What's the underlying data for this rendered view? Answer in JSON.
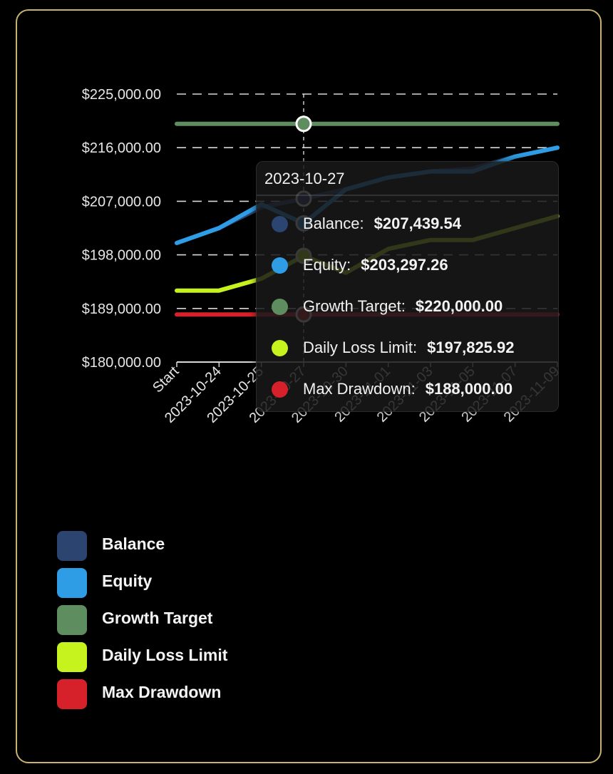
{
  "chart_data": {
    "type": "line",
    "x": [
      "Start",
      "2023-10-24",
      "2023-10-25",
      "2023-10-27",
      "2023-10-30",
      "2023-11-01",
      "2023-11-03",
      "2023-11-05",
      "2023-11-07",
      "2023-11-09"
    ],
    "ylim": [
      180000,
      225000
    ],
    "yticks": [
      "$225,000.00",
      "$216,000.00",
      "$207,000.00",
      "$198,000.00",
      "$189,000.00",
      "$180,000.00"
    ],
    "ytick_values": [
      225000,
      216000,
      207000,
      198000,
      189000,
      180000
    ],
    "grid": true,
    "legend_position": "bottom-left",
    "series": [
      {
        "name": "Balance",
        "color": "#2b4470",
        "values": [
          200000,
          202500,
          206000,
          207439.54,
          209000,
          211000,
          212000,
          212500,
          214500,
          216000
        ]
      },
      {
        "name": "Equity",
        "color": "#2e9de6",
        "values": [
          200000,
          202500,
          206500,
          203297.26,
          209000,
          211000,
          212000,
          212000,
          214500,
          216000
        ]
      },
      {
        "name": "Growth Target",
        "color": "#5e8e5f",
        "values": [
          220000,
          220000,
          220000,
          220000,
          220000,
          220000,
          220000,
          220000,
          220000,
          220000
        ]
      },
      {
        "name": "Daily Loss Limit",
        "color": "#c6f31e",
        "values": [
          192000,
          192000,
          194000,
          197825.92,
          195000,
          199000,
          200500,
          200500,
          202500,
          204500
        ]
      },
      {
        "name": "Max Drawdown",
        "color": "#d6212a",
        "values": [
          188000,
          188000,
          188000,
          188000,
          188000,
          188000,
          188000,
          188000,
          188000,
          188000
        ]
      }
    ],
    "highlighted_index": 3
  },
  "tooltip": {
    "date": "2023-10-27",
    "rows": [
      {
        "label": "Balance:",
        "value": "$207,439.54",
        "color": "#2b4470"
      },
      {
        "label": "Equity:",
        "value": "$203,297.26",
        "color": "#2e9de6"
      },
      {
        "label": "Growth Target:",
        "value": "$220,000.00",
        "color": "#5e8e5f"
      },
      {
        "label": "Daily Loss Limit:",
        "value": "$197,825.92",
        "color": "#c6f31e"
      },
      {
        "label": "Max Drawdown:",
        "value": "$188,000.00",
        "color": "#d6212a"
      }
    ]
  },
  "legend": {
    "items": [
      {
        "label": "Balance",
        "color": "#2b4470"
      },
      {
        "label": "Equity",
        "color": "#2e9de6"
      },
      {
        "label": "Growth Target",
        "color": "#5e8e5f"
      },
      {
        "label": "Daily Loss Limit",
        "color": "#c6f31e"
      },
      {
        "label": "Max Drawdown",
        "color": "#d6212a"
      }
    ]
  }
}
